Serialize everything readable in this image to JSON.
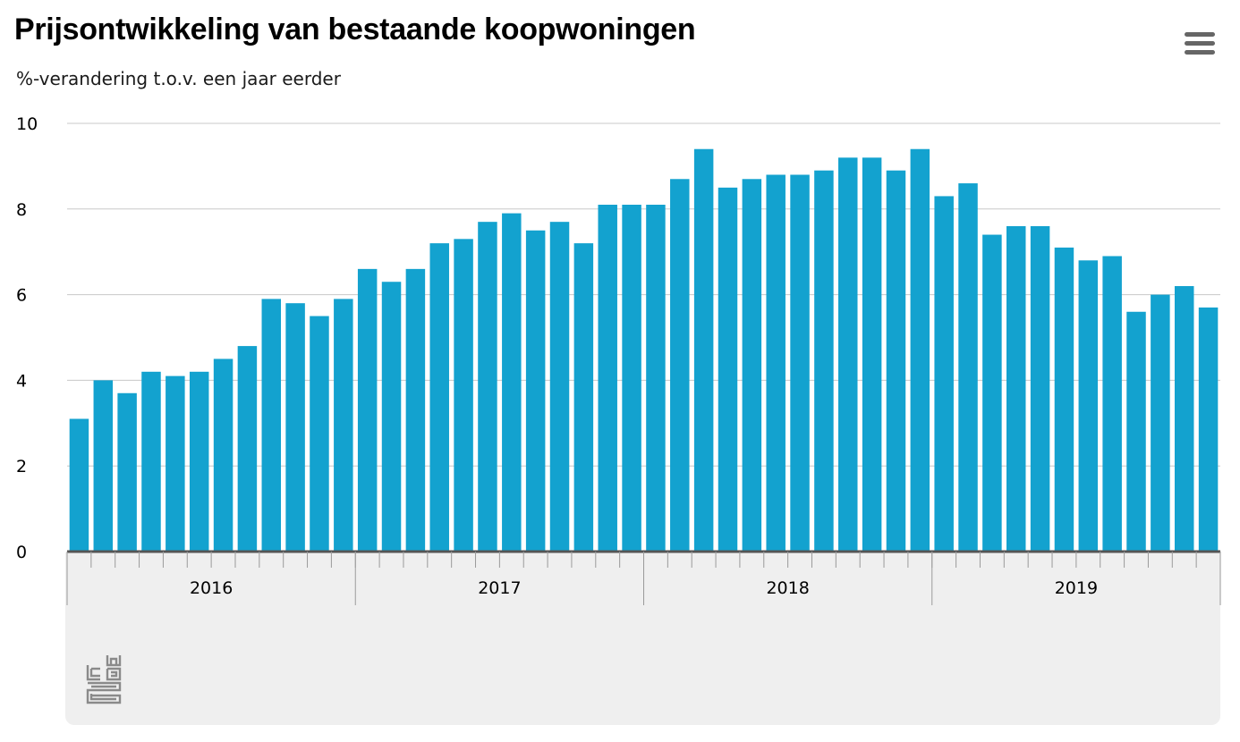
{
  "header": {
    "title": "Prijsontwikkeling van bestaande koopwoningen",
    "subtitle": "%-verandering t.o.v. een jaar eerder",
    "menu_icon": "hamburger-menu-icon"
  },
  "footer": {
    "logo_icon": "cbs-logo-icon"
  },
  "colors": {
    "bar": "#13a2cf",
    "grid": "#c8c8c8",
    "axis": "#555555",
    "footer_bg": "#efefef"
  },
  "chart_data": {
    "type": "bar",
    "title": "Prijsontwikkeling van bestaande koopwoningen",
    "subtitle": "%-verandering t.o.v. een jaar eerder",
    "ylim": [
      0,
      10
    ],
    "yticks": [
      "0",
      "2",
      "4",
      "6",
      "8",
      "10"
    ],
    "grid": true,
    "year_labels": [
      "2016",
      "2017",
      "2018",
      "2019"
    ],
    "categories": [
      "2016-01",
      "2016-02",
      "2016-03",
      "2016-04",
      "2016-05",
      "2016-06",
      "2016-07",
      "2016-08",
      "2016-09",
      "2016-10",
      "2016-11",
      "2016-12",
      "2017-01",
      "2017-02",
      "2017-03",
      "2017-04",
      "2017-05",
      "2017-06",
      "2017-07",
      "2017-08",
      "2017-09",
      "2017-10",
      "2017-11",
      "2017-12",
      "2018-01",
      "2018-02",
      "2018-03",
      "2018-04",
      "2018-05",
      "2018-06",
      "2018-07",
      "2018-08",
      "2018-09",
      "2018-10",
      "2018-11",
      "2018-12",
      "2019-01",
      "2019-02",
      "2019-03",
      "2019-04",
      "2019-05",
      "2019-06",
      "2019-07",
      "2019-08",
      "2019-09",
      "2019-10",
      "2019-11",
      "2019-12"
    ],
    "values": [
      3.1,
      4.0,
      3.7,
      4.2,
      4.1,
      4.2,
      4.5,
      4.8,
      5.9,
      5.8,
      5.5,
      5.9,
      6.6,
      6.3,
      6.6,
      7.2,
      7.3,
      7.7,
      7.9,
      7.5,
      7.7,
      7.2,
      8.1,
      8.1,
      8.1,
      8.7,
      9.4,
      8.5,
      8.7,
      8.8,
      8.8,
      8.9,
      9.2,
      9.2,
      8.9,
      9.4,
      8.3,
      8.6,
      7.4,
      7.6,
      7.6,
      7.1,
      6.8,
      6.9,
      5.6,
      6.0,
      6.2,
      5.7
    ]
  }
}
